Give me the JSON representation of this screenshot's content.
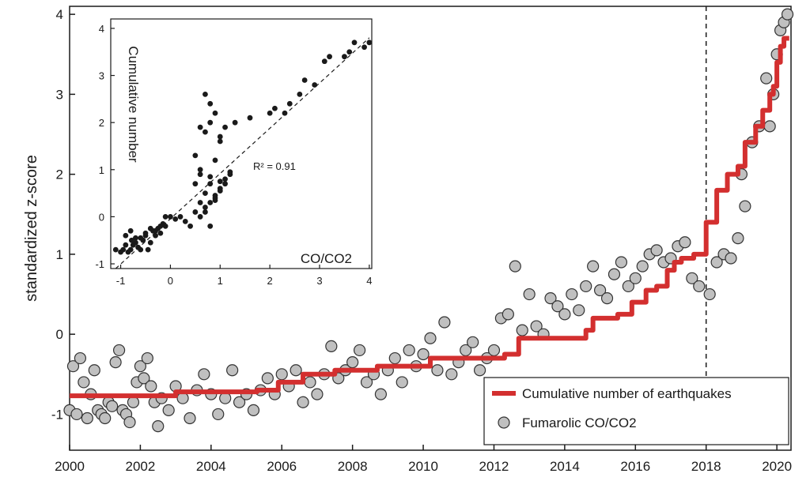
{
  "chart_data": [
    {
      "type": "scatter",
      "role": "main",
      "title": "",
      "xlabel": "",
      "ylabel": "standardized z-score",
      "xlim": [
        2000,
        2020.4
      ],
      "ylim": [
        -1.45,
        4.1
      ],
      "x_ticks": [
        2000,
        2002,
        2004,
        2006,
        2008,
        2010,
        2012,
        2014,
        2016,
        2018,
        2020
      ],
      "x_tick_labels": [
        "2000",
        "2002",
        "2004",
        "2006",
        "2008",
        "2010",
        "2012",
        "2014",
        "2016",
        "2018",
        "2020"
      ],
      "y_ticks": [
        -1,
        0,
        1,
        2,
        3,
        4
      ],
      "y_tick_labels": [
        "-1",
        "0",
        "1",
        "2",
        "3",
        "4"
      ],
      "vline_x": 2018,
      "legend": {
        "position": "bottom-right",
        "entries": [
          {
            "label": "Cumulative number of earthquakes",
            "marker": "line",
            "color": "#d32f2f"
          },
          {
            "label": "Fumarolic CO/CO2",
            "marker": "circle",
            "color": "#c0c0c0"
          }
        ]
      },
      "series": [
        {
          "name": "Cumulative number of earthquakes",
          "kind": "step-line",
          "color": "#d32f2f",
          "x": [
            2000,
            2003.0,
            2005.3,
            2005.9,
            2006.6,
            2007.5,
            2008.7,
            2010.2,
            2012.3,
            2012.7,
            2014.6,
            2014.8,
            2015.5,
            2015.9,
            2016.3,
            2016.6,
            2016.9,
            2017.1,
            2017.3,
            2017.65,
            2018.0,
            2018.3,
            2018.6,
            2018.9,
            2019.1,
            2019.4,
            2019.6,
            2019.8,
            2019.9,
            2020.0,
            2020.1,
            2020.2,
            2020.3
          ],
          "y": [
            -0.77,
            -0.72,
            -0.7,
            -0.6,
            -0.5,
            -0.45,
            -0.4,
            -0.3,
            -0.25,
            -0.05,
            0.05,
            0.2,
            0.25,
            0.4,
            0.55,
            0.6,
            0.8,
            0.9,
            0.95,
            1.0,
            1.4,
            1.8,
            2.0,
            2.1,
            2.4,
            2.6,
            2.8,
            3.0,
            3.1,
            3.4,
            3.6,
            3.7,
            3.7
          ]
        },
        {
          "name": "Fumarolic CO/CO2",
          "kind": "scatter",
          "color": "#c0c0c0",
          "x": [
            2000.0,
            2000.1,
            2000.2,
            2000.3,
            2000.4,
            2000.5,
            2000.6,
            2000.7,
            2000.8,
            2000.9,
            2001.0,
            2001.1,
            2001.2,
            2001.3,
            2001.4,
            2001.5,
            2001.6,
            2001.7,
            2001.8,
            2001.9,
            2002.0,
            2002.1,
            2002.2,
            2002.3,
            2002.4,
            2002.5,
            2002.6,
            2002.8,
            2003.0,
            2003.2,
            2003.4,
            2003.6,
            2003.8,
            2004.0,
            2004.2,
            2004.4,
            2004.6,
            2004.8,
            2005.0,
            2005.2,
            2005.4,
            2005.6,
            2005.8,
            2006.0,
            2006.2,
            2006.4,
            2006.6,
            2006.8,
            2007.0,
            2007.2,
            2007.4,
            2007.6,
            2007.8,
            2008.0,
            2008.2,
            2008.4,
            2008.6,
            2008.8,
            2009.0,
            2009.2,
            2009.4,
            2009.6,
            2009.8,
            2010.0,
            2010.2,
            2010.4,
            2010.6,
            2010.8,
            2011.0,
            2011.2,
            2011.4,
            2011.6,
            2011.8,
            2012.0,
            2012.2,
            2012.4,
            2012.6,
            2012.8,
            2013.0,
            2013.2,
            2013.4,
            2013.6,
            2013.8,
            2014.0,
            2014.2,
            2014.4,
            2014.6,
            2014.8,
            2015.0,
            2015.2,
            2015.4,
            2015.6,
            2015.8,
            2016.0,
            2016.2,
            2016.4,
            2016.6,
            2016.8,
            2017.0,
            2017.2,
            2017.4,
            2017.6,
            2017.8,
            2018.1,
            2018.3,
            2018.5,
            2018.7,
            2018.9,
            2019.0,
            2019.1,
            2019.3,
            2019.5,
            2019.7,
            2019.8,
            2019.9,
            2020.0,
            2020.1,
            2020.2,
            2020.3
          ],
          "y": [
            -0.95,
            -0.4,
            -1.0,
            -0.3,
            -0.6,
            -1.05,
            -0.75,
            -0.45,
            -0.95,
            -1.0,
            -1.05,
            -0.85,
            -0.9,
            -0.35,
            -0.2,
            -0.95,
            -1.0,
            -1.1,
            -0.85,
            -0.6,
            -0.4,
            -0.55,
            -0.3,
            -0.65,
            -0.85,
            -1.15,
            -0.8,
            -0.95,
            -0.65,
            -0.8,
            -1.05,
            -0.7,
            -0.5,
            -0.75,
            -1.0,
            -0.8,
            -0.45,
            -0.85,
            -0.75,
            -0.95,
            -0.7,
            -0.55,
            -0.75,
            -0.5,
            -0.65,
            -0.45,
            -0.85,
            -0.6,
            -0.75,
            -0.5,
            -0.15,
            -0.55,
            -0.45,
            -0.35,
            -0.2,
            -0.6,
            -0.5,
            -0.75,
            -0.45,
            -0.3,
            -0.6,
            -0.2,
            -0.4,
            -0.25,
            -0.05,
            -0.45,
            0.15,
            -0.5,
            -0.35,
            -0.2,
            -0.1,
            -0.45,
            -0.3,
            -0.2,
            0.2,
            0.25,
            0.85,
            0.05,
            0.5,
            0.1,
            0.0,
            0.45,
            0.35,
            0.25,
            0.5,
            0.3,
            0.6,
            0.85,
            0.55,
            0.45,
            0.75,
            0.9,
            0.6,
            0.7,
            0.85,
            1.0,
            1.05,
            0.9,
            0.95,
            1.1,
            1.15,
            0.7,
            0.6,
            0.5,
            0.9,
            1.0,
            0.95,
            1.2,
            2.0,
            1.6,
            2.4,
            2.6,
            3.2,
            2.6,
            3.0,
            3.5,
            3.8,
            3.9,
            4.0
          ]
        }
      ]
    },
    {
      "type": "scatter",
      "role": "inset",
      "title": "",
      "xlabel": "CO/CO2",
      "ylabel": "Cumulative number",
      "xlim": [
        -1.2,
        4.05
      ],
      "ylim": [
        -1.1,
        4.2
      ],
      "x_ticks": [
        -1,
        0,
        1,
        2,
        3,
        4
      ],
      "x_tick_labels": [
        "-1",
        "0",
        "1",
        "2",
        "3",
        "4"
      ],
      "y_ticks": [
        -1,
        0,
        1,
        2,
        3,
        4
      ],
      "y_tick_labels": [
        "-1",
        "0",
        "1",
        "2",
        "3",
        "4"
      ],
      "annotation": "R² = 0.91",
      "fit_line": {
        "x": [
          -1.1,
          4.0
        ],
        "y": [
          -1.1,
          3.8
        ]
      },
      "series": [
        {
          "name": "points",
          "color": "#1a1a1a",
          "x": [
            -1.1,
            -1.0,
            -0.95,
            -0.9,
            -0.85,
            -0.8,
            -0.78,
            -0.75,
            -0.7,
            -0.65,
            -0.6,
            -0.55,
            -0.5,
            -0.45,
            -0.4,
            -0.35,
            -0.3,
            -0.25,
            -0.2,
            -0.15,
            -0.1,
            -0.9,
            -0.8,
            -0.7,
            -0.6,
            -0.5,
            -0.4,
            -0.3,
            -0.2,
            -0.1,
            0.0,
            0.1,
            0.2,
            0.3,
            0.4,
            0.5,
            0.6,
            0.7,
            0.8,
            0.9,
            1.0,
            1.1,
            1.2,
            0.6,
            0.7,
            0.8,
            0.9,
            1.0,
            1.1,
            1.2,
            0.5,
            0.6,
            0.7,
            0.8,
            0.9,
            1.0,
            0.6,
            0.7,
            0.8,
            0.9,
            1.0,
            1.1,
            0.7,
            0.8,
            0.9,
            0.5,
            0.6,
            0.8,
            1.0,
            1.3,
            1.6,
            2.0,
            2.1,
            2.3,
            2.4,
            2.6,
            2.7,
            2.9,
            3.1,
            3.2,
            3.5,
            3.6,
            3.7,
            3.9,
            4.0
          ],
          "y": [
            -0.7,
            -0.75,
            -0.7,
            -0.6,
            -0.75,
            -0.7,
            -0.5,
            -0.6,
            -0.45,
            -0.65,
            -0.7,
            -0.5,
            -0.4,
            -0.7,
            -0.55,
            -0.3,
            -0.4,
            -0.25,
            -0.35,
            -0.15,
            -0.2,
            -0.4,
            -0.3,
            -0.55,
            -0.45,
            -0.35,
            -0.25,
            -0.3,
            -0.2,
            0.0,
            0.0,
            -0.05,
            0.0,
            -0.1,
            -0.2,
            0.1,
            0.0,
            0.2,
            0.3,
            0.45,
            0.55,
            0.7,
            0.9,
            0.9,
            0.5,
            0.7,
            0.4,
            0.6,
            0.8,
            0.95,
            0.7,
            0.3,
            0.1,
            -0.2,
            0.35,
            0.75,
            1.9,
            1.8,
            2.0,
            2.2,
            1.7,
            1.9,
            2.6,
            2.4,
            1.2,
            1.3,
            1.0,
            0.85,
            1.6,
            2.0,
            2.1,
            2.2,
            2.3,
            2.2,
            2.4,
            2.6,
            2.9,
            2.8,
            3.3,
            3.4,
            3.4,
            3.5,
            3.7,
            3.6,
            3.7
          ]
        }
      ]
    }
  ]
}
